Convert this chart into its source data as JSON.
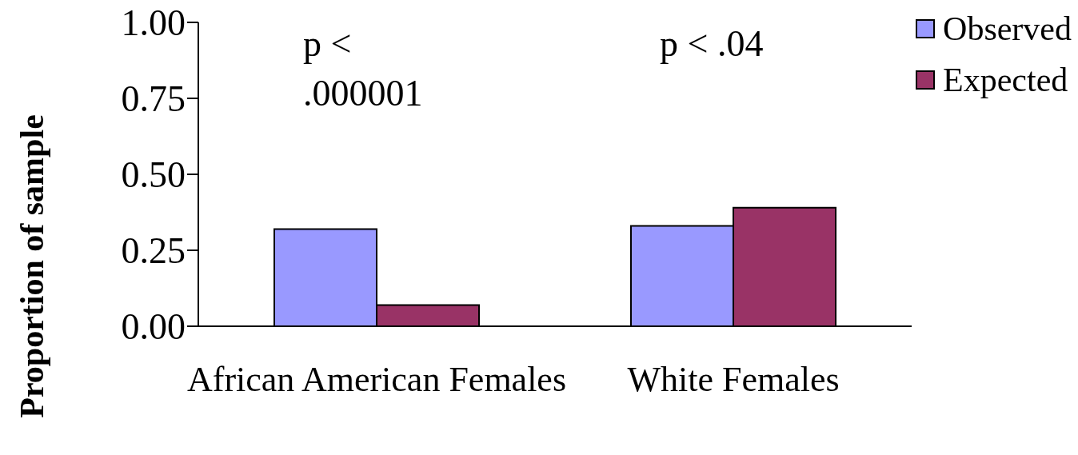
{
  "chart_data": {
    "type": "bar",
    "ylabel": "Proportion of sample",
    "categories": [
      "African American Females",
      "White Females"
    ],
    "series": [
      {
        "name": "Observed",
        "color": "#9999ff",
        "values": [
          0.32,
          0.33
        ]
      },
      {
        "name": "Expected",
        "color": "#993366",
        "values": [
          0.07,
          0.39
        ]
      }
    ],
    "ylim": [
      0,
      1
    ],
    "yticks": [
      {
        "value": 0,
        "label": "0.00"
      },
      {
        "value": 0.25,
        "label": "0.25"
      },
      {
        "value": 0.5,
        "label": "0.50"
      },
      {
        "value": 0.75,
        "label": "0.75"
      },
      {
        "value": 1,
        "label": "1.00"
      }
    ],
    "annotations": [
      "p < .000001",
      "p < .04"
    ],
    "legend": "top right"
  }
}
